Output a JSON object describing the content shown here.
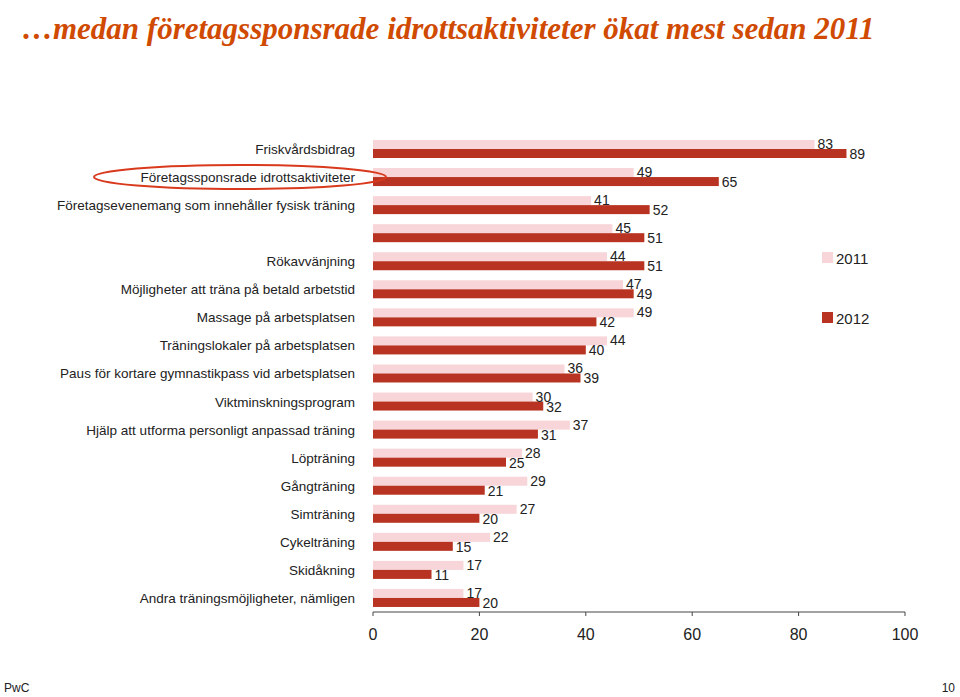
{
  "chart_data": {
    "type": "bar",
    "orientation": "horizontal",
    "title": "…medan företagssponsrade idrottsaktiviteter ökat mest sedan 2011",
    "categories": [
      "Friskvårdsbidrag",
      "Företagssponsrade idrottsaktiviteter",
      "Företagsevenemang som innehåller fysisk träning",
      null,
      "Rökavvänjning",
      "Möjligheter att träna på betald arbetstid",
      "Massage på arbetsplatsen",
      "Träningslokaler på arbetsplatsen",
      "Paus för kortare gymnastikpass vid arbetsplatsen",
      "Viktminskningsprogram",
      "Hjälp att utforma personligt anpassad träning",
      "Löpträning",
      "Gångträning",
      "Simträning",
      "Cykelträning",
      "Skidåkning",
      "Andra träningsmöjligheter, nämligen"
    ],
    "series": [
      {
        "name": "2011",
        "color": "#f7d5d8",
        "values": [
          83,
          49,
          41,
          45,
          44,
          47,
          49,
          44,
          36,
          30,
          37,
          28,
          29,
          27,
          22,
          17,
          17
        ]
      },
      {
        "name": "2012",
        "color": "#b83321",
        "values": [
          89,
          65,
          52,
          51,
          51,
          49,
          42,
          40,
          39,
          32,
          31,
          25,
          21,
          20,
          15,
          11,
          20
        ]
      }
    ],
    "xlim": [
      0,
      100
    ],
    "xticks": [
      0,
      20,
      40,
      60,
      80,
      100
    ],
    "grid": false,
    "legend": "right",
    "data_labels": true
  },
  "page": {
    "footer_left": "PwC",
    "footer_right": "10"
  }
}
